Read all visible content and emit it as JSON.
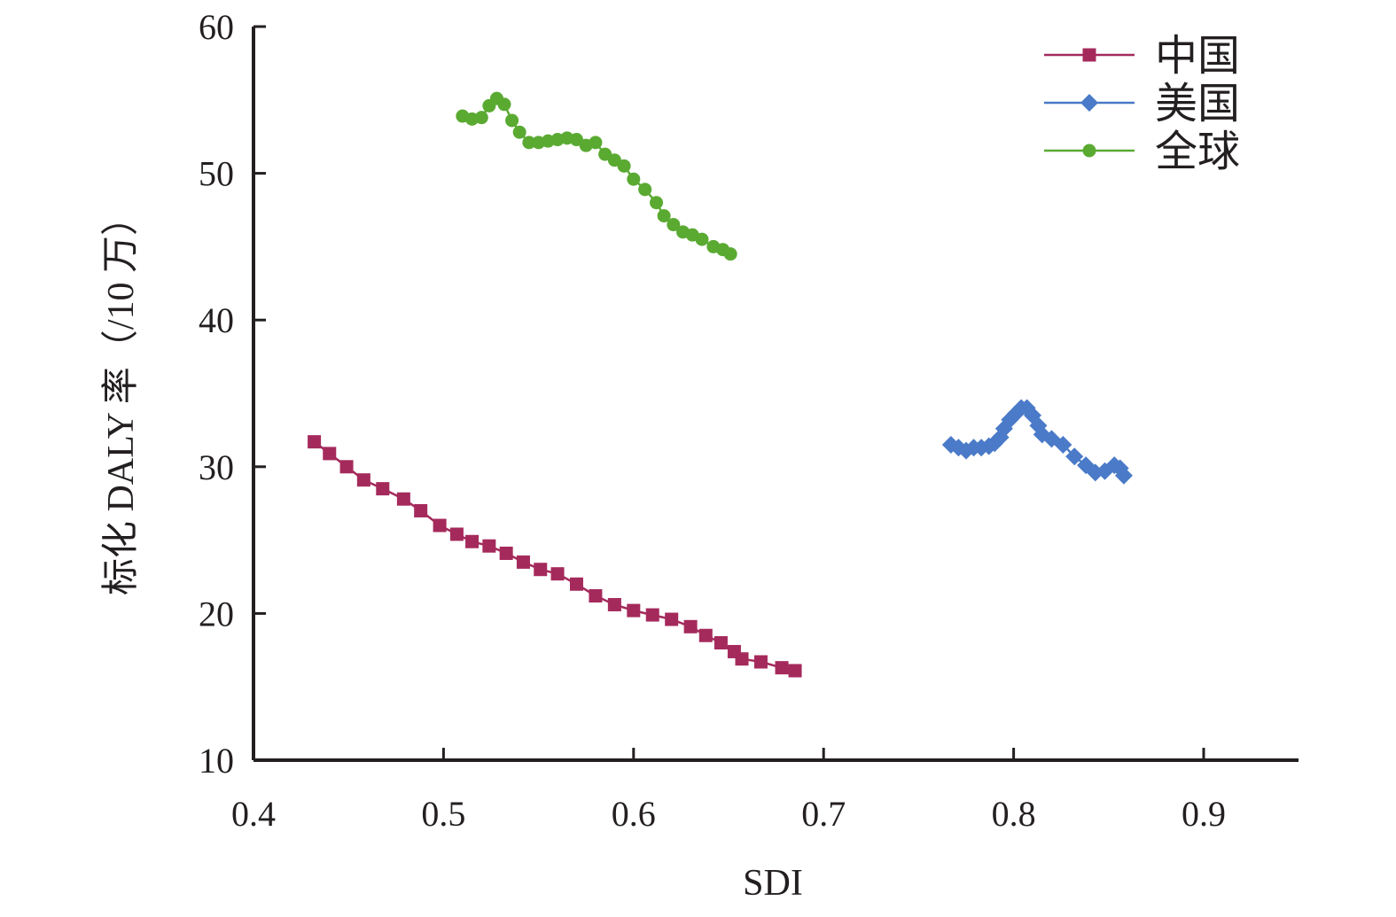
{
  "chart_data": {
    "type": "line",
    "xlabel": "SDI",
    "ylabel": "标化 DALY 率（/10 万）",
    "xlim": [
      0.4,
      0.95
    ],
    "ylim": [
      10,
      60
    ],
    "xticks": [
      0.4,
      0.5,
      0.6,
      0.7,
      0.8,
      0.9
    ],
    "yticks": [
      10,
      20,
      30,
      40,
      50,
      60
    ],
    "x_tick_labels": [
      "0.4",
      "0.5",
      "0.6",
      "0.7",
      "0.8",
      "0.9"
    ],
    "y_tick_labels": [
      "10",
      "20",
      "30",
      "40",
      "50",
      "60"
    ],
    "grid": false,
    "legend_position": "top-right",
    "series": [
      {
        "name": "中国",
        "color": "#a52a5c",
        "marker": "square",
        "points": [
          [
            0.432,
            31.7
          ],
          [
            0.44,
            30.9
          ],
          [
            0.449,
            30.0
          ],
          [
            0.458,
            29.1
          ],
          [
            0.468,
            28.5
          ],
          [
            0.479,
            27.8
          ],
          [
            0.488,
            27.0
          ],
          [
            0.498,
            26.0
          ],
          [
            0.507,
            25.4
          ],
          [
            0.515,
            24.9
          ],
          [
            0.524,
            24.6
          ],
          [
            0.533,
            24.1
          ],
          [
            0.542,
            23.5
          ],
          [
            0.551,
            23.0
          ],
          [
            0.56,
            22.7
          ],
          [
            0.57,
            22.0
          ],
          [
            0.58,
            21.2
          ],
          [
            0.59,
            20.6
          ],
          [
            0.6,
            20.2
          ],
          [
            0.61,
            19.9
          ],
          [
            0.62,
            19.6
          ],
          [
            0.63,
            19.1
          ],
          [
            0.638,
            18.5
          ],
          [
            0.646,
            18.0
          ],
          [
            0.653,
            17.4
          ],
          [
            0.657,
            16.9
          ],
          [
            0.667,
            16.7
          ],
          [
            0.678,
            16.3
          ],
          [
            0.685,
            16.1
          ]
        ]
      },
      {
        "name": "美国",
        "color": "#4a7ac8",
        "marker": "diamond",
        "points": [
          [
            0.767,
            31.5
          ],
          [
            0.771,
            31.3
          ],
          [
            0.775,
            31.1
          ],
          [
            0.779,
            31.3
          ],
          [
            0.783,
            31.3
          ],
          [
            0.787,
            31.4
          ],
          [
            0.79,
            31.6
          ],
          [
            0.793,
            32.0
          ],
          [
            0.795,
            32.6
          ],
          [
            0.798,
            33.2
          ],
          [
            0.801,
            33.6
          ],
          [
            0.804,
            34.0
          ],
          [
            0.807,
            34.0
          ],
          [
            0.81,
            33.5
          ],
          [
            0.813,
            32.8
          ],
          [
            0.815,
            32.2
          ],
          [
            0.82,
            31.9
          ],
          [
            0.826,
            31.5
          ],
          [
            0.832,
            30.7
          ],
          [
            0.838,
            30.1
          ],
          [
            0.843,
            29.6
          ],
          [
            0.848,
            29.7
          ],
          [
            0.853,
            30.1
          ],
          [
            0.856,
            29.9
          ],
          [
            0.858,
            29.4
          ]
        ]
      },
      {
        "name": "全球",
        "color": "#5aaa32",
        "marker": "circle",
        "points": [
          [
            0.51,
            53.9
          ],
          [
            0.515,
            53.7
          ],
          [
            0.52,
            53.8
          ],
          [
            0.524,
            54.6
          ],
          [
            0.528,
            55.1
          ],
          [
            0.532,
            54.7
          ],
          [
            0.536,
            53.6
          ],
          [
            0.54,
            52.8
          ],
          [
            0.545,
            52.1
          ],
          [
            0.55,
            52.1
          ],
          [
            0.555,
            52.2
          ],
          [
            0.56,
            52.3
          ],
          [
            0.565,
            52.4
          ],
          [
            0.57,
            52.3
          ],
          [
            0.575,
            51.9
          ],
          [
            0.58,
            52.1
          ],
          [
            0.585,
            51.3
          ],
          [
            0.59,
            50.9
          ],
          [
            0.595,
            50.5
          ],
          [
            0.6,
            49.6
          ],
          [
            0.606,
            48.9
          ],
          [
            0.612,
            48.0
          ],
          [
            0.616,
            47.1
          ],
          [
            0.621,
            46.5
          ],
          [
            0.626,
            46.0
          ],
          [
            0.631,
            45.8
          ],
          [
            0.636,
            45.5
          ],
          [
            0.642,
            45.0
          ],
          [
            0.647,
            44.8
          ],
          [
            0.651,
            44.5
          ]
        ]
      }
    ]
  }
}
